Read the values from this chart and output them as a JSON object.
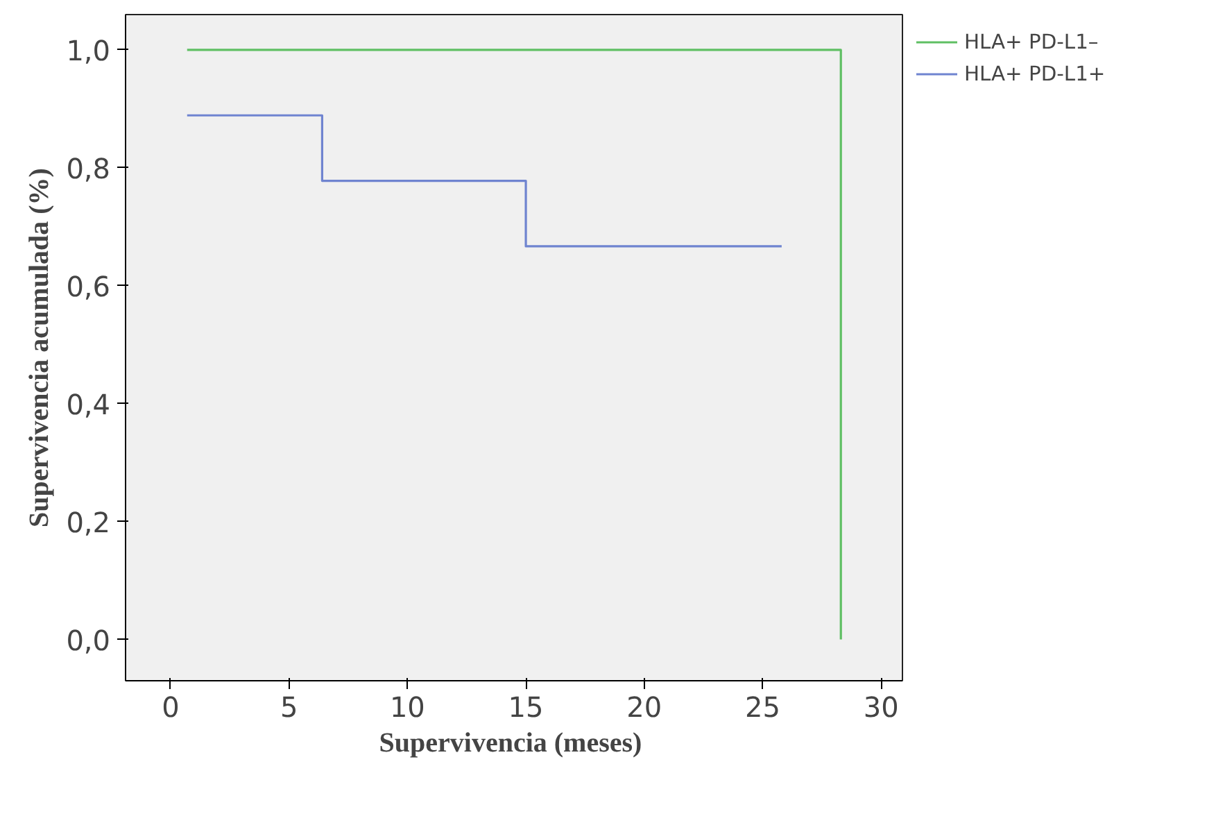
{
  "chart_data": {
    "type": "step",
    "xlabel": "Supervivencia  (meses)",
    "ylabel": "Supervivencia acumulada (%)",
    "xlim": [
      -1.9,
      30.9
    ],
    "ylim": [
      -0.07,
      1.06
    ],
    "xticks": [
      0,
      5,
      10,
      15,
      20,
      25,
      30
    ],
    "yticks": [
      {
        "value": 0,
        "label": "0,0"
      },
      {
        "value": 0.2,
        "label": "0,2"
      },
      {
        "value": 0.4,
        "label": "0,4"
      },
      {
        "value": 0.6,
        "label": "0,6"
      },
      {
        "value": 0.8,
        "label": "0,8"
      },
      {
        "value": 1,
        "label": "1,0"
      }
    ],
    "grid": false,
    "legend": "right",
    "marker": "none",
    "line_style": "solid",
    "series": [
      {
        "name": "HLA+ PD-L1–",
        "color": "#5fbf63",
        "x": [
          0.7,
          28.3,
          28.3
        ],
        "values": [
          1.0,
          1.0,
          0.0
        ]
      },
      {
        "name": "HLA+ PD-L1+",
        "color": "#6f84d0",
        "x": [
          0.7,
          6.4,
          15.0,
          25.8
        ],
        "values": [
          0.889,
          0.778,
          0.667,
          0.667
        ]
      }
    ]
  }
}
